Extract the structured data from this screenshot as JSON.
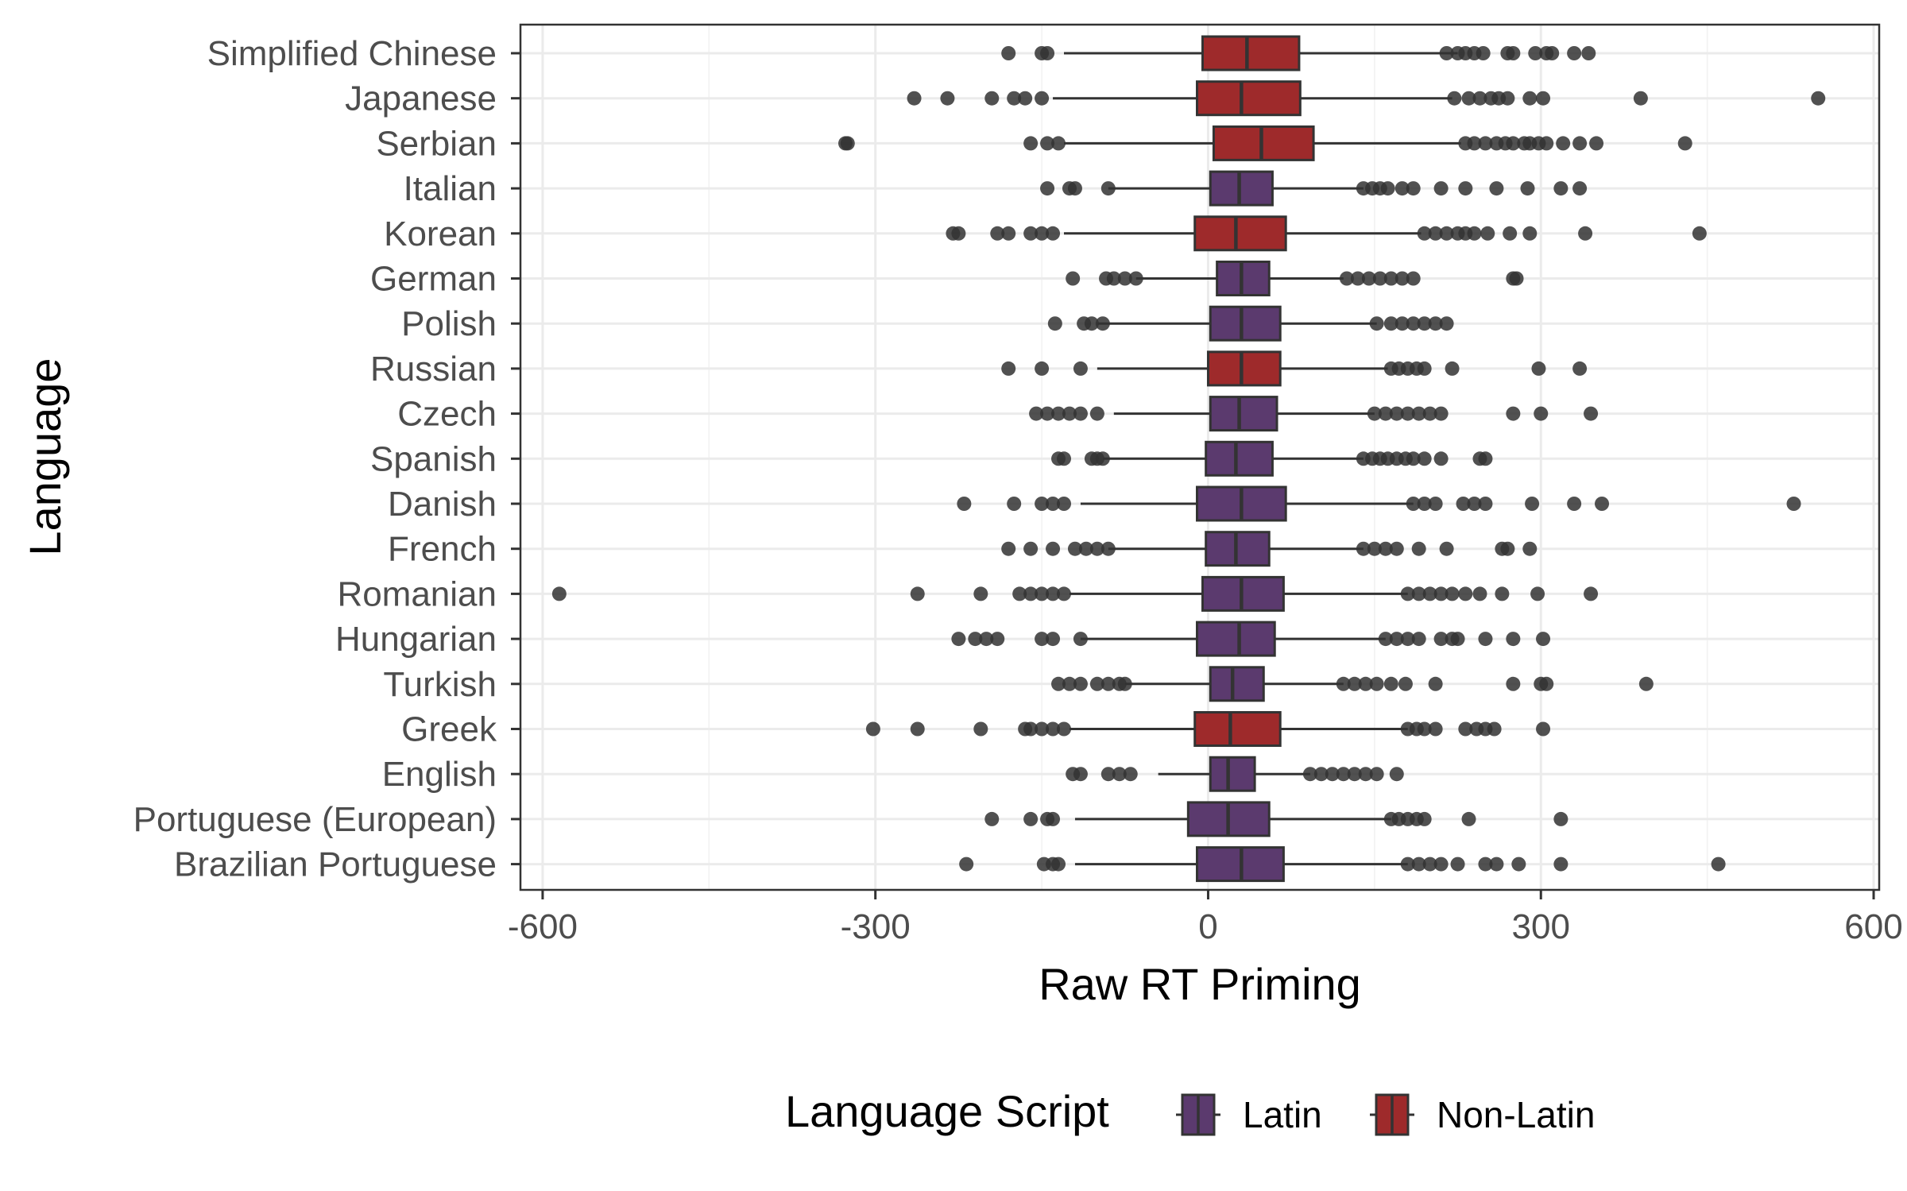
{
  "chart_data": {
    "type": "box",
    "orientation": "horizontal",
    "xlabel": "Raw RT Priming",
    "ylabel": "Language",
    "xlim": [
      -620,
      605
    ],
    "xticks": [
      -600,
      -300,
      0,
      300,
      600
    ],
    "x_tick_labels": [
      "-600",
      "-300",
      "0",
      "300",
      "600"
    ],
    "grid": true,
    "legend": {
      "title": "Language Script",
      "position": "bottom",
      "entries": [
        {
          "label": "Latin",
          "color": "#5b3a6e"
        },
        {
          "label": "Non-Latin",
          "color": "#9e2a2b"
        }
      ]
    },
    "series_colors": {
      "Latin": "#5b3a6e",
      "Non-Latin": "#9e2a2b"
    },
    "categories": [
      {
        "name": "Simplified Chinese",
        "script": "Non-Latin",
        "q1": -5,
        "median": 35,
        "q3": 82,
        "wmin": -130,
        "wmax": 225,
        "outliers": [
          -180,
          -150,
          -145,
          215,
          225,
          232,
          240,
          248,
          270,
          275,
          295,
          305,
          310,
          330,
          343
        ]
      },
      {
        "name": "Japanese",
        "script": "Non-Latin",
        "q1": -10,
        "median": 30,
        "q3": 83,
        "wmin": -140,
        "wmax": 220,
        "outliers": [
          -265,
          -235,
          -195,
          -175,
          -165,
          -150,
          222,
          235,
          245,
          255,
          262,
          270,
          290,
          302,
          390,
          550
        ]
      },
      {
        "name": "Serbian",
        "script": "Non-Latin",
        "q1": 5,
        "median": 48,
        "q3": 95,
        "wmin": -130,
        "wmax": 228,
        "outliers": [
          -327,
          -325,
          -160,
          -145,
          -135,
          232,
          240,
          250,
          260,
          268,
          275,
          285,
          290,
          298,
          305,
          320,
          335,
          350,
          430
        ]
      },
      {
        "name": "Italian",
        "script": "Latin",
        "q1": 2,
        "median": 28,
        "q3": 58,
        "wmin": -90,
        "wmax": 140,
        "outliers": [
          -145,
          -125,
          -120,
          -90,
          140,
          148,
          155,
          162,
          175,
          185,
          210,
          232,
          260,
          288,
          318,
          335
        ]
      },
      {
        "name": "Korean",
        "script": "Non-Latin",
        "q1": -12,
        "median": 25,
        "q3": 70,
        "wmin": -130,
        "wmax": 192,
        "outliers": [
          -230,
          -225,
          -190,
          -180,
          -160,
          -150,
          -140,
          195,
          205,
          215,
          225,
          232,
          240,
          252,
          272,
          290,
          340,
          443
        ]
      },
      {
        "name": "German",
        "script": "Latin",
        "q1": 8,
        "median": 30,
        "q3": 55,
        "wmin": -65,
        "wmax": 122,
        "outliers": [
          -122,
          -92,
          -85,
          -75,
          -65,
          125,
          135,
          145,
          155,
          165,
          175,
          185,
          275,
          278
        ]
      },
      {
        "name": "Polish",
        "script": "Latin",
        "q1": 2,
        "median": 30,
        "q3": 65,
        "wmin": -100,
        "wmax": 152,
        "outliers": [
          -138,
          -112,
          -105,
          -95,
          152,
          165,
          175,
          185,
          195,
          205,
          215
        ]
      },
      {
        "name": "Russian",
        "script": "Non-Latin",
        "q1": 0,
        "median": 30,
        "q3": 65,
        "wmin": -100,
        "wmax": 162,
        "outliers": [
          -180,
          -150,
          -115,
          165,
          172,
          180,
          188,
          195,
          220,
          298,
          335
        ]
      },
      {
        "name": "Czech",
        "script": "Latin",
        "q1": 2,
        "median": 28,
        "q3": 62,
        "wmin": -85,
        "wmax": 150,
        "outliers": [
          -155,
          -145,
          -135,
          -125,
          -115,
          -100,
          150,
          160,
          170,
          180,
          190,
          200,
          210,
          275,
          300,
          345
        ]
      },
      {
        "name": "Spanish",
        "script": "Latin",
        "q1": -2,
        "median": 25,
        "q3": 58,
        "wmin": -95,
        "wmax": 140,
        "outliers": [
          -135,
          -130,
          -105,
          -100,
          -95,
          140,
          148,
          155,
          162,
          170,
          178,
          185,
          195,
          210,
          245,
          250
        ]
      },
      {
        "name": "Danish",
        "script": "Latin",
        "q1": -10,
        "median": 30,
        "q3": 70,
        "wmin": -115,
        "wmax": 185,
        "outliers": [
          -220,
          -175,
          -150,
          -140,
          -130,
          185,
          195,
          205,
          230,
          240,
          250,
          292,
          330,
          355,
          528
        ]
      },
      {
        "name": "French",
        "script": "Latin",
        "q1": -2,
        "median": 25,
        "q3": 55,
        "wmin": -90,
        "wmax": 140,
        "outliers": [
          -180,
          -160,
          -140,
          -120,
          -110,
          -100,
          -90,
          140,
          150,
          160,
          170,
          190,
          215,
          265,
          270,
          290
        ]
      },
      {
        "name": "Romanian",
        "script": "Latin",
        "q1": -5,
        "median": 30,
        "q3": 68,
        "wmin": -125,
        "wmax": 180,
        "outliers": [
          -585,
          -262,
          -205,
          -170,
          -160,
          -150,
          -140,
          -130,
          180,
          190,
          200,
          210,
          220,
          232,
          245,
          265,
          297,
          345
        ]
      },
      {
        "name": "Hungarian",
        "script": "Latin",
        "q1": -10,
        "median": 28,
        "q3": 60,
        "wmin": -115,
        "wmax": 160,
        "outliers": [
          -225,
          -210,
          -200,
          -190,
          -150,
          -140,
          -115,
          160,
          170,
          180,
          190,
          210,
          220,
          225,
          250,
          275,
          302
        ]
      },
      {
        "name": "Turkish",
        "script": "Latin",
        "q1": 2,
        "median": 22,
        "q3": 50,
        "wmin": -75,
        "wmax": 122,
        "outliers": [
          -135,
          -125,
          -115,
          -100,
          -90,
          -80,
          -75,
          122,
          132,
          142,
          152,
          165,
          178,
          205,
          275,
          300,
          305,
          395
        ]
      },
      {
        "name": "Greek",
        "script": "Non-Latin",
        "q1": -12,
        "median": 20,
        "q3": 65,
        "wmin": -125,
        "wmax": 180,
        "outliers": [
          -302,
          -262,
          -205,
          -165,
          -160,
          -150,
          -140,
          -130,
          180,
          188,
          195,
          205,
          232,
          242,
          250,
          258,
          302
        ]
      },
      {
        "name": "English",
        "script": "Latin",
        "q1": 2,
        "median": 18,
        "q3": 42,
        "wmin": -45,
        "wmax": 92,
        "outliers": [
          -122,
          -115,
          -90,
          -80,
          -70,
          92,
          102,
          112,
          122,
          132,
          142,
          152,
          170
        ]
      },
      {
        "name": "Portuguese (European)",
        "script": "Latin",
        "q1": -18,
        "median": 18,
        "q3": 55,
        "wmin": -120,
        "wmax": 165,
        "outliers": [
          -195,
          -160,
          -145,
          -140,
          165,
          172,
          180,
          188,
          195,
          235,
          318
        ]
      },
      {
        "name": "Brazilian Portuguese",
        "script": "Latin",
        "q1": -10,
        "median": 30,
        "q3": 68,
        "wmin": -120,
        "wmax": 180,
        "outliers": [
          -218,
          -148,
          -140,
          -135,
          180,
          190,
          200,
          210,
          225,
          250,
          260,
          280,
          318,
          460
        ]
      }
    ]
  }
}
